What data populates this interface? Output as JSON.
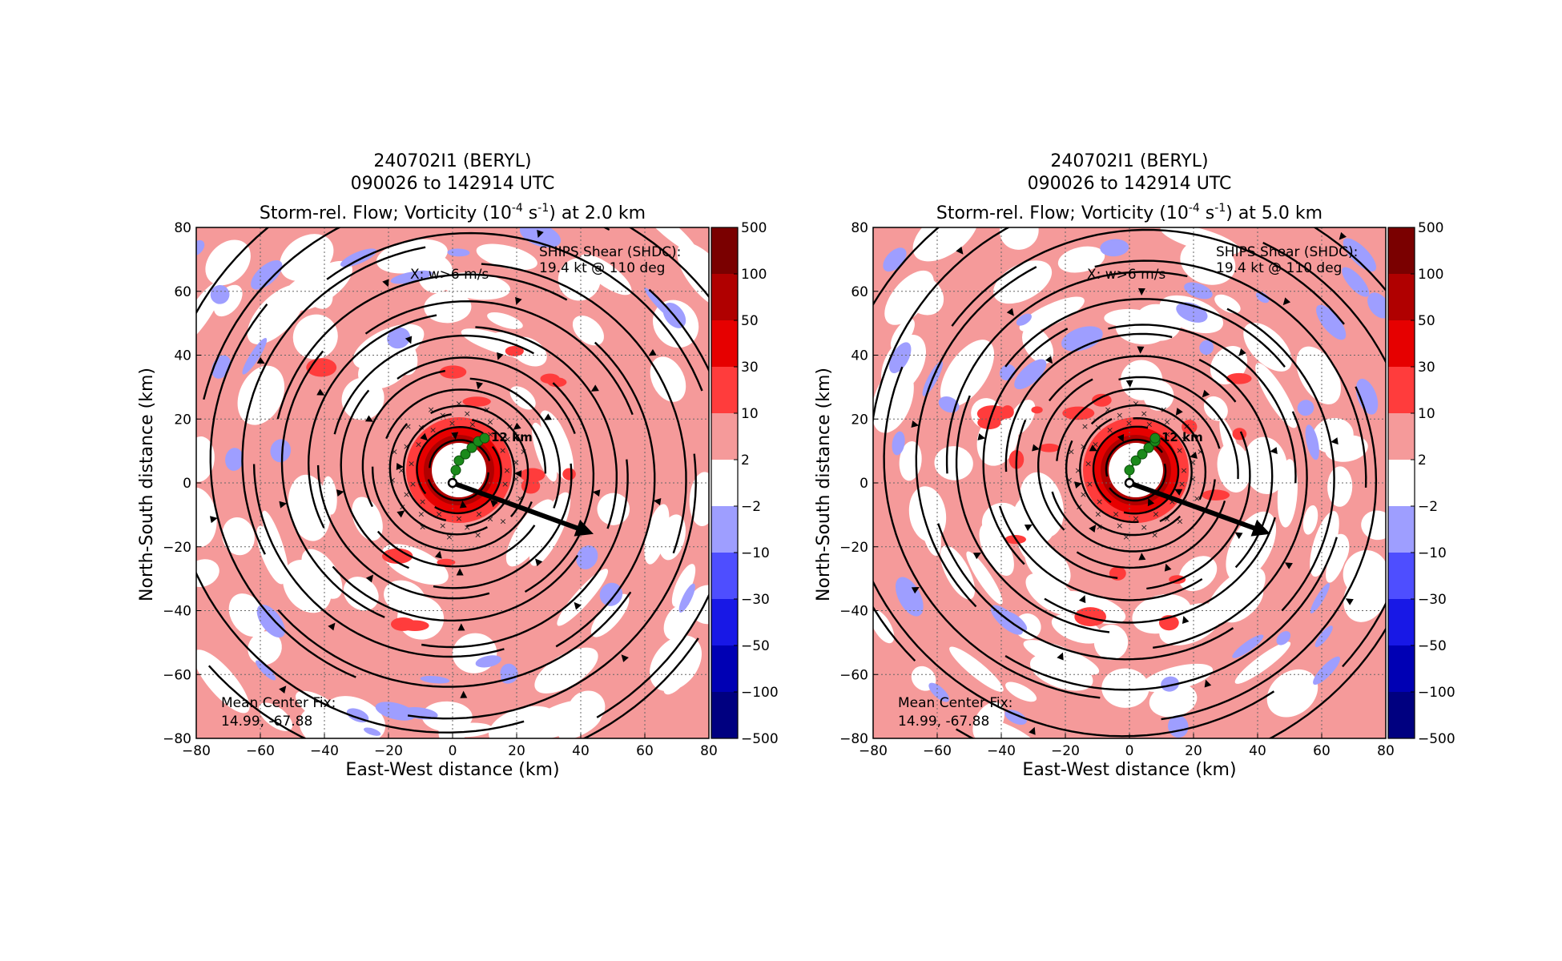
{
  "chart_data": [
    {
      "type": "contour-vector",
      "title_lines": [
        "240702I1 (BERYL)",
        "090026 to 142914 UTC"
      ],
      "title_main_prefix": "Storm-rel. Flow; Vorticity (10",
      "title_exp1": "-4",
      "title_mid": " s",
      "title_exp2": "-1",
      "title_suffix": ") at 2.0 km",
      "xlabel": "East-West distance (km)",
      "ylabel": "North-South distance (km)",
      "xlim": [
        -80,
        80
      ],
      "ylim": [
        -80,
        80
      ],
      "xticks": [
        "−80",
        "−60",
        "−40",
        "−20",
        "0",
        "20",
        "40",
        "60",
        "80"
      ],
      "yticks": [
        "80",
        "60",
        "40",
        "20",
        "0",
        "−20",
        "−40",
        "−60",
        "−80"
      ],
      "colorbar_ticks": [
        "500",
        "100",
        "50",
        "30",
        "10",
        "2",
        "−2",
        "−10",
        "−30",
        "−50",
        "−100",
        "−500"
      ],
      "colorbar_colors": [
        "#7a0000",
        "#b00000",
        "#e60000",
        "#ff3c3c",
        "#f59a9a",
        "#ffffff",
        "#9e9eff",
        "#4e4eff",
        "#1818e6",
        "#0000b4",
        "#000080"
      ],
      "shear_text": [
        "SHIPS Shear (SHDC):",
        "19.4 kt @ 110 deg"
      ],
      "w_text": "X: w>6 m/s",
      "tilt_label": "12 km",
      "center_fix_text": [
        "Mean Center Fix:",
        "14.99, -67.88"
      ],
      "shear_vector": {
        "from": [
          0,
          0
        ],
        "to": [
          44,
          -16
        ]
      },
      "tilt_track": [
        [
          0,
          0
        ],
        [
          1,
          4
        ],
        [
          2,
          7
        ],
        [
          4,
          9
        ],
        [
          6,
          11
        ],
        [
          8,
          13
        ],
        [
          10,
          14
        ]
      ],
      "streamline_radii": [
        10,
        14,
        18,
        22,
        27,
        32,
        38,
        44,
        50,
        57,
        64,
        72,
        80,
        90,
        100
      ]
    },
    {
      "type": "contour-vector",
      "title_lines": [
        "240702I1 (BERYL)",
        "090026 to 142914 UTC"
      ],
      "title_main_prefix": "Storm-rel. Flow; Vorticity (10",
      "title_exp1": "-4",
      "title_mid": " s",
      "title_exp2": "-1",
      "title_suffix": ") at 5.0 km",
      "xlabel": "East-West distance (km)",
      "ylabel": "North-South distance (km)",
      "xlim": [
        -80,
        80
      ],
      "ylim": [
        -80,
        80
      ],
      "xticks": [
        "−80",
        "−60",
        "−40",
        "−20",
        "0",
        "20",
        "40",
        "60",
        "80"
      ],
      "yticks": [
        "80",
        "60",
        "40",
        "20",
        "0",
        "−20",
        "−40",
        "−60",
        "−80"
      ],
      "colorbar_ticks": [
        "500",
        "100",
        "50",
        "30",
        "10",
        "2",
        "−2",
        "−10",
        "−30",
        "−50",
        "−100",
        "−500"
      ],
      "colorbar_colors": [
        "#7a0000",
        "#b00000",
        "#e60000",
        "#ff3c3c",
        "#f59a9a",
        "#ffffff",
        "#9e9eff",
        "#4e4eff",
        "#1818e6",
        "#0000b4",
        "#000080"
      ],
      "shear_text": [
        "SHIPS Shear (SHDC):",
        "19.4 kt @ 110 deg"
      ],
      "w_text": "X: w>6 m/s",
      "tilt_label": "12 km",
      "center_fix_text": [
        "Mean Center Fix:",
        "14.99, -67.88"
      ],
      "shear_vector": {
        "from": [
          0,
          0
        ],
        "to": [
          44,
          -16
        ]
      },
      "tilt_track": [
        [
          0,
          0
        ],
        [
          0,
          4
        ],
        [
          2,
          7
        ],
        [
          4,
          9
        ],
        [
          6,
          11
        ],
        [
          8,
          13
        ],
        [
          8,
          14
        ]
      ],
      "streamline_radii": [
        10,
        14,
        18,
        22,
        27,
        32,
        38,
        44,
        50,
        57,
        64,
        72,
        80,
        90,
        100
      ]
    }
  ]
}
